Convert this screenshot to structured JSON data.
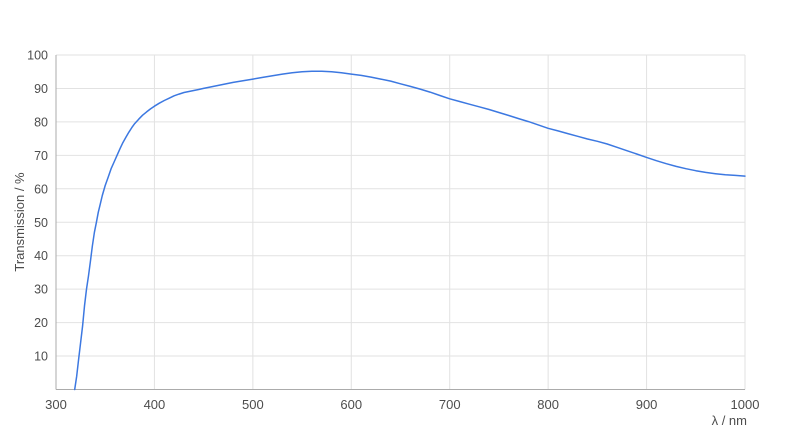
{
  "chart_data": {
    "type": "line",
    "title": "",
    "xlabel": "λ / nm",
    "ylabel": "Transmission / %",
    "xlim": [
      300,
      1000
    ],
    "ylim": [
      0,
      100
    ],
    "x_ticks": [
      300,
      400,
      500,
      600,
      700,
      800,
      900,
      1000
    ],
    "y_ticks": [
      10,
      20,
      30,
      40,
      50,
      60,
      70,
      80,
      90,
      100
    ],
    "grid": true,
    "legend": "none",
    "colors": {
      "line": "#3c78e1",
      "grid": "#e2e2e2",
      "axis": "#ababab",
      "text": "#4d4d4d",
      "background": "#ffffff"
    },
    "series": [
      {
        "name": "Transmission",
        "points": [
          [
            319,
            0
          ],
          [
            321,
            4
          ],
          [
            323,
            9
          ],
          [
            325,
            14
          ],
          [
            327,
            19
          ],
          [
            329,
            25
          ],
          [
            331,
            30
          ],
          [
            333,
            34
          ],
          [
            335,
            38.5
          ],
          [
            337,
            43
          ],
          [
            339,
            47
          ],
          [
            341,
            50
          ],
          [
            343,
            53
          ],
          [
            345,
            55.5
          ],
          [
            347,
            58
          ],
          [
            350,
            61
          ],
          [
            353,
            63.5
          ],
          [
            356,
            66
          ],
          [
            359,
            68
          ],
          [
            362,
            70
          ],
          [
            365,
            72
          ],
          [
            368,
            73.8
          ],
          [
            371,
            75.4
          ],
          [
            374,
            76.9
          ],
          [
            377,
            78.3
          ],
          [
            380,
            79.5
          ],
          [
            384,
            80.8
          ],
          [
            388,
            82
          ],
          [
            392,
            83
          ],
          [
            396,
            83.9
          ],
          [
            400,
            84.7
          ],
          [
            405,
            85.6
          ],
          [
            410,
            86.4
          ],
          [
            415,
            87.1
          ],
          [
            420,
            87.8
          ],
          [
            425,
            88.3
          ],
          [
            430,
            88.8
          ],
          [
            435,
            89.1
          ],
          [
            440,
            89.4
          ],
          [
            445,
            89.7
          ],
          [
            450,
            90
          ],
          [
            460,
            90.6
          ],
          [
            470,
            91.2
          ],
          [
            480,
            91.8
          ],
          [
            490,
            92.3
          ],
          [
            500,
            92.8
          ],
          [
            510,
            93.3
          ],
          [
            520,
            93.8
          ],
          [
            530,
            94.3
          ],
          [
            540,
            94.7
          ],
          [
            550,
            95
          ],
          [
            560,
            95.15
          ],
          [
            570,
            95.15
          ],
          [
            580,
            95
          ],
          [
            590,
            94.7
          ],
          [
            600,
            94.3
          ],
          [
            610,
            93.9
          ],
          [
            620,
            93.4
          ],
          [
            630,
            92.8
          ],
          [
            640,
            92.2
          ],
          [
            650,
            91.4
          ],
          [
            660,
            90.6
          ],
          [
            670,
            89.8
          ],
          [
            680,
            88.9
          ],
          [
            690,
            87.9
          ],
          [
            700,
            86.9
          ],
          [
            710,
            86.1
          ],
          [
            720,
            85.3
          ],
          [
            730,
            84.5
          ],
          [
            740,
            83.7
          ],
          [
            750,
            82.8
          ],
          [
            760,
            81.9
          ],
          [
            770,
            81
          ],
          [
            780,
            80.1
          ],
          [
            790,
            79.1
          ],
          [
            800,
            78.1
          ],
          [
            810,
            77.3
          ],
          [
            820,
            76.5
          ],
          [
            830,
            75.7
          ],
          [
            840,
            74.9
          ],
          [
            850,
            74.2
          ],
          [
            860,
            73.4
          ],
          [
            870,
            72.4
          ],
          [
            880,
            71.4
          ],
          [
            890,
            70.4
          ],
          [
            900,
            69.4
          ],
          [
            910,
            68.4
          ],
          [
            920,
            67.5
          ],
          [
            930,
            66.7
          ],
          [
            940,
            66
          ],
          [
            950,
            65.4
          ],
          [
            960,
            64.9
          ],
          [
            970,
            64.5
          ],
          [
            980,
            64.2
          ],
          [
            990,
            64
          ],
          [
            1000,
            63.8
          ]
        ]
      }
    ]
  }
}
